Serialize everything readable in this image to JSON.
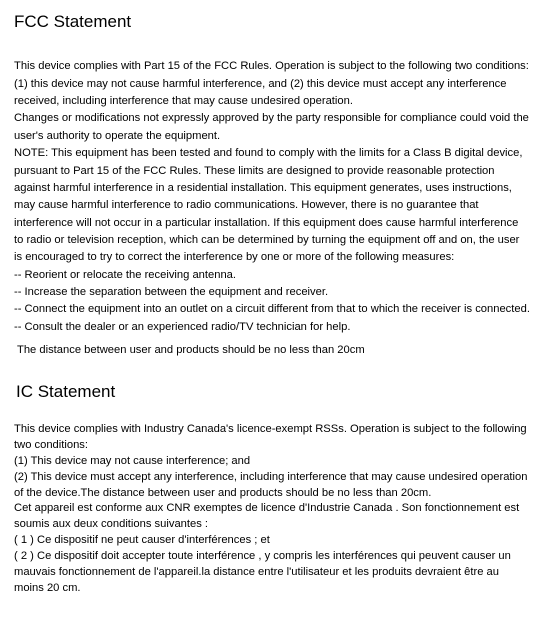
{
  "doc": {
    "h1": "FCC Statement",
    "p1": "This device complies with Part 15 of the FCC Rules. Operation is subject to the following two conditions: (1) this device may not cause harmful interference, and (2) this device must accept any interference received, including interference that may cause undesired operation.",
    "p2": "Changes or modifications not expressly approved by the party responsible for compliance could void the user's authority to operate the equipment.",
    "p3": "NOTE: This equipment has been tested and found to comply with the limits for a Class B digital device, pursuant to Part 15 of the FCC Rules. These limits are designed to provide reasonable protection against harmful interference in a residential installation. This equipment generates, uses instructions, may cause harmful interference to radio communications. However, there is no guarantee that interference will not occur in a particular installation. If this equipment does cause harmful interference to radio or television reception, which can be determined by turning the equipment off and on, the user is encouraged to try to correct the interference by one or more of the following measures:",
    "m1": "-- Reorient or relocate the receiving antenna.",
    "m2": "-- Increase the separation between the equipment and receiver.",
    "m3": "-- Connect the equipment into an outlet on a circuit different from that to which the receiver is connected.",
    "m4": "-- Consult the dealer or an experienced radio/TV technician for help.",
    "dist": "The distance between user and products should be no less than 20cm",
    "h2": "IC Statement",
    "ic1": "This device complies with Industry Canada's licence-exempt RSSs. Operation is subject to the following  two conditions:",
    "ic2": "(1) This device may not cause interference; and",
    "ic3": "(2) This device must accept any interference, including interference that may cause undesired operation of  the device.The distance between user and products should be no less than 20cm.",
    "ic4": "Cet appareil est conforme aux CNR exemptes de licence d'Industrie Canada . Son fonctionnement est soumis aux deux conditions suivantes :",
    "ic5": "( 1 ) Ce dispositif ne peut causer d'interférences ; et",
    "ic6": "( 2 ) Ce dispositif doit accepter toute interférence , y compris les interférences qui peuvent causer un mauvais fonctionnement de l'appareil.la distance entre l'utilisateur et les produits devraient être au moins 20 cm."
  }
}
